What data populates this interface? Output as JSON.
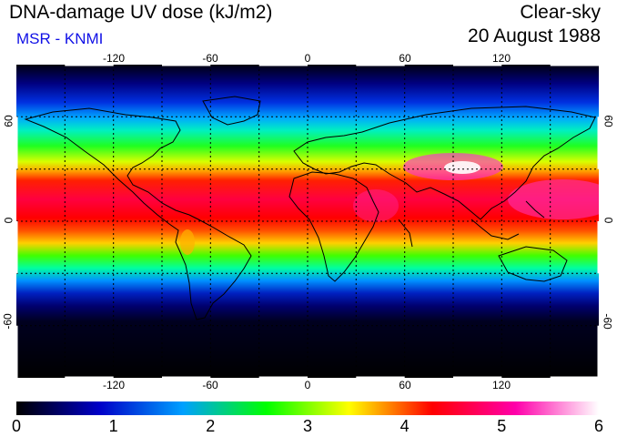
{
  "header": {
    "title": "DNA-damage UV dose (kJ/m2)",
    "subtitle": "MSR - KNMI",
    "sky_condition": "Clear-sky",
    "date": "20 August 1988"
  },
  "map": {
    "projection": "equirectangular",
    "lon_ticks": [
      "-120",
      "-60",
      "0",
      "60",
      "120"
    ],
    "lat_ticks": [
      "60",
      "0",
      "-60"
    ],
    "grid": "dashed 30-degree graticule",
    "field": "UV dose shaded by latitude, highest in northern subtropics"
  },
  "colorbar": {
    "min": 0,
    "max": 6,
    "labels": [
      "0",
      "1",
      "2",
      "3",
      "4",
      "5",
      "6"
    ],
    "colors": [
      "#000000",
      "#0000c8",
      "#00a0ff",
      "#00ff00",
      "#ffff00",
      "#ff0000",
      "#ff00aa",
      "#ffffff"
    ]
  }
}
